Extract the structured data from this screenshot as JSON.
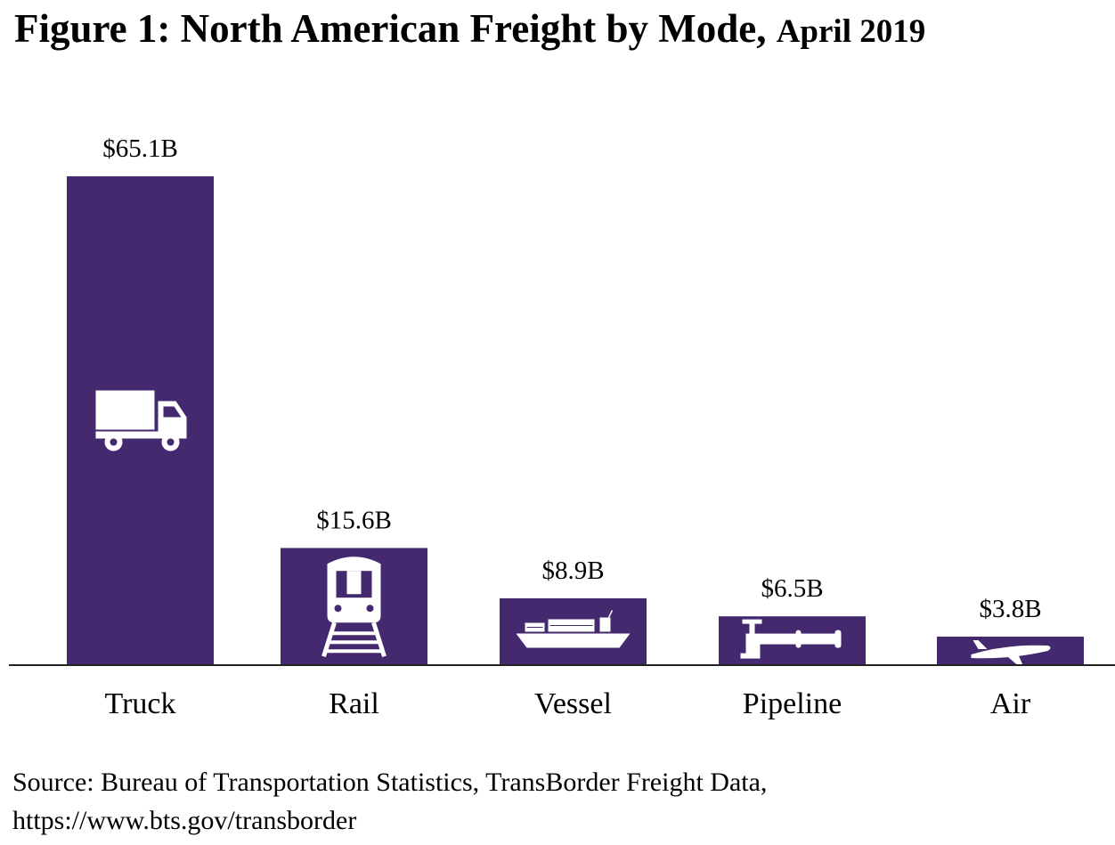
{
  "title": "Figure 1: North American Freight by Mode,",
  "title_date": "April 2019",
  "chart_data": {
    "type": "bar",
    "categories": [
      "Truck",
      "Rail",
      "Vessel",
      "Pipeline",
      "Air"
    ],
    "values": [
      65.1,
      15.6,
      8.9,
      6.5,
      3.8
    ],
    "data_labels": [
      "$65.1B",
      "$15.6B",
      "$8.9B",
      "$6.5B",
      "$3.8B"
    ],
    "icons": [
      "truck-icon",
      "train-icon",
      "ship-icon",
      "pipeline-icon",
      "airplane-icon"
    ],
    "units": "billion USD",
    "ylim": [
      0,
      65.1
    ],
    "grid": false,
    "legend": "none",
    "bar_color": "#44296f"
  },
  "source": {
    "line1": "Source: Bureau of Transportation Statistics, TransBorder Freight Data,",
    "line2": "https://www.bts.gov/transborder"
  }
}
